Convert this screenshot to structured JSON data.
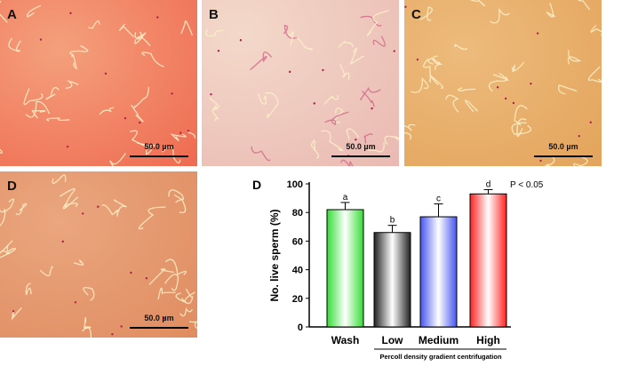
{
  "panels": [
    {
      "label": "A",
      "scale": "50.0 µm",
      "colors": [
        "#f4a07c",
        "#ef6a50"
      ]
    },
    {
      "label": "B",
      "scale": "50.0 µm",
      "colors": [
        "#f3d9c9",
        "#eab9b2"
      ]
    },
    {
      "label": "C",
      "scale": "50.0 µm",
      "colors": [
        "#edbb7c",
        "#e3a45c"
      ]
    },
    {
      "label": "D",
      "scale": "50.0 µm",
      "colors": [
        "#eaa67e",
        "#e08c60"
      ]
    }
  ],
  "chart_data": {
    "type": "bar",
    "panel_label": "D",
    "categories": [
      "Wash",
      "Low",
      "Medium",
      "High"
    ],
    "values": [
      82,
      66,
      77,
      93
    ],
    "error_upper": [
      87,
      71,
      86,
      96
    ],
    "significance_letters": [
      "a",
      "b",
      "c",
      "d"
    ],
    "colors": [
      "#33dd33",
      "#222222",
      "#4455ee",
      "#ff2222"
    ],
    "ylabel": "No. live sperm (%)",
    "ylim": [
      0,
      100
    ],
    "yticks": [
      0,
      20,
      40,
      60,
      80,
      100
    ],
    "group_label": "Percoll density gradient centrifugation",
    "annotation": "P < 0.05",
    "grid": false
  }
}
